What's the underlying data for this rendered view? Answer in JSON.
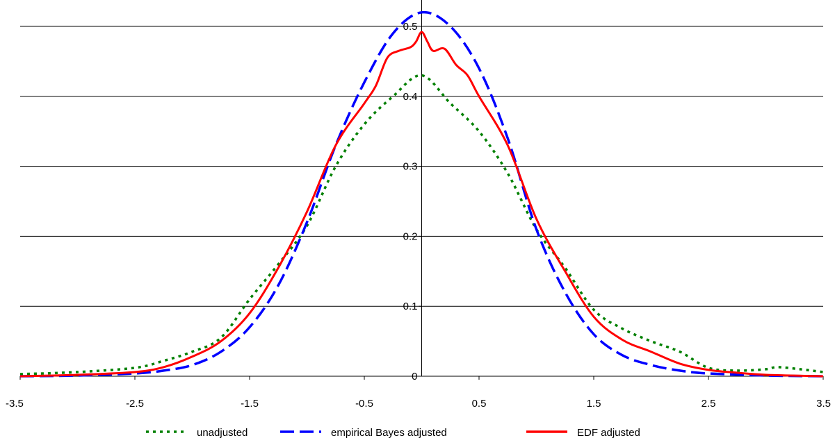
{
  "chart_data": {
    "type": "line",
    "title": "",
    "xlabel": "",
    "ylabel": "",
    "xlim": [
      -3.5,
      3.5
    ],
    "ylim": [
      0,
      0.52
    ],
    "x_ticks": [
      -3.5,
      -2.5,
      -1.5,
      -0.5,
      0.5,
      1.5,
      2.5,
      3.5
    ],
    "x_tick_labels": [
      "-3.5",
      "-2.5",
      "-1.5",
      "-0.5",
      "0.5",
      "1.5",
      "2.5",
      "3.5"
    ],
    "y_ticks": [
      0,
      0.1,
      0.2,
      0.3,
      0.4,
      0.5
    ],
    "y_tick_labels": [
      "0",
      "0.1",
      "0.2",
      "0.3",
      "0.4",
      "0.5"
    ],
    "grid": "horizontal",
    "legend_position": "bottom",
    "series": [
      {
        "name": "unadjusted",
        "color": "#008000",
        "style": "dotted",
        "points": [
          [
            -3.5,
            0.003
          ],
          [
            -3.0,
            0.006
          ],
          [
            -2.5,
            0.012
          ],
          [
            -2.25,
            0.022
          ],
          [
            -2.0,
            0.035
          ],
          [
            -1.75,
            0.055
          ],
          [
            -1.5,
            0.11
          ],
          [
            -1.25,
            0.16
          ],
          [
            -1.0,
            0.215
          ],
          [
            -0.75,
            0.3
          ],
          [
            -0.5,
            0.36
          ],
          [
            -0.25,
            0.4
          ],
          [
            0.0,
            0.43
          ],
          [
            0.25,
            0.39
          ],
          [
            0.5,
            0.35
          ],
          [
            0.75,
            0.29
          ],
          [
            1.0,
            0.21
          ],
          [
            1.25,
            0.155
          ],
          [
            1.5,
            0.095
          ],
          [
            1.75,
            0.068
          ],
          [
            2.0,
            0.05
          ],
          [
            2.25,
            0.035
          ],
          [
            2.5,
            0.012
          ],
          [
            2.75,
            0.008
          ],
          [
            3.0,
            0.01
          ],
          [
            3.1,
            0.013
          ],
          [
            3.3,
            0.01
          ],
          [
            3.5,
            0.006
          ]
        ]
      },
      {
        "name": "empirical Bayes adjusted",
        "color": "#0000ff",
        "style": "dashed",
        "points": [
          [
            -3.5,
            0.0
          ],
          [
            -3.0,
            0.001
          ],
          [
            -2.5,
            0.004
          ],
          [
            -2.25,
            0.008
          ],
          [
            -2.0,
            0.016
          ],
          [
            -1.75,
            0.035
          ],
          [
            -1.5,
            0.07
          ],
          [
            -1.25,
            0.13
          ],
          [
            -1.0,
            0.22
          ],
          [
            -0.75,
            0.33
          ],
          [
            -0.5,
            0.42
          ],
          [
            -0.25,
            0.49
          ],
          [
            0.0,
            0.52
          ],
          [
            0.25,
            0.5
          ],
          [
            0.5,
            0.44
          ],
          [
            0.75,
            0.34
          ],
          [
            1.0,
            0.21
          ],
          [
            1.25,
            0.12
          ],
          [
            1.5,
            0.06
          ],
          [
            1.75,
            0.03
          ],
          [
            2.0,
            0.016
          ],
          [
            2.25,
            0.008
          ],
          [
            2.5,
            0.004
          ],
          [
            3.0,
            0.001
          ],
          [
            3.5,
            0.0
          ]
        ]
      },
      {
        "name": "EDF adjusted",
        "color": "#ff0000",
        "style": "solid",
        "points": [
          [
            -3.5,
            0.0
          ],
          [
            -3.0,
            0.002
          ],
          [
            -2.5,
            0.006
          ],
          [
            -2.25,
            0.013
          ],
          [
            -2.0,
            0.028
          ],
          [
            -1.75,
            0.05
          ],
          [
            -1.5,
            0.09
          ],
          [
            -1.25,
            0.155
          ],
          [
            -1.0,
            0.235
          ],
          [
            -0.75,
            0.33
          ],
          [
            -0.5,
            0.39
          ],
          [
            -0.4,
            0.415
          ],
          [
            -0.3,
            0.455
          ],
          [
            -0.2,
            0.465
          ],
          [
            -0.1,
            0.47
          ],
          [
            -0.05,
            0.478
          ],
          [
            0.0,
            0.492
          ],
          [
            0.05,
            0.478
          ],
          [
            0.1,
            0.465
          ],
          [
            0.2,
            0.468
          ],
          [
            0.3,
            0.445
          ],
          [
            0.4,
            0.43
          ],
          [
            0.5,
            0.4
          ],
          [
            0.75,
            0.33
          ],
          [
            1.0,
            0.225
          ],
          [
            1.25,
            0.15
          ],
          [
            1.5,
            0.085
          ],
          [
            1.75,
            0.052
          ],
          [
            2.0,
            0.035
          ],
          [
            2.25,
            0.018
          ],
          [
            2.5,
            0.009
          ],
          [
            2.75,
            0.005
          ],
          [
            3.0,
            0.002
          ],
          [
            3.5,
            0.0
          ]
        ]
      }
    ]
  }
}
